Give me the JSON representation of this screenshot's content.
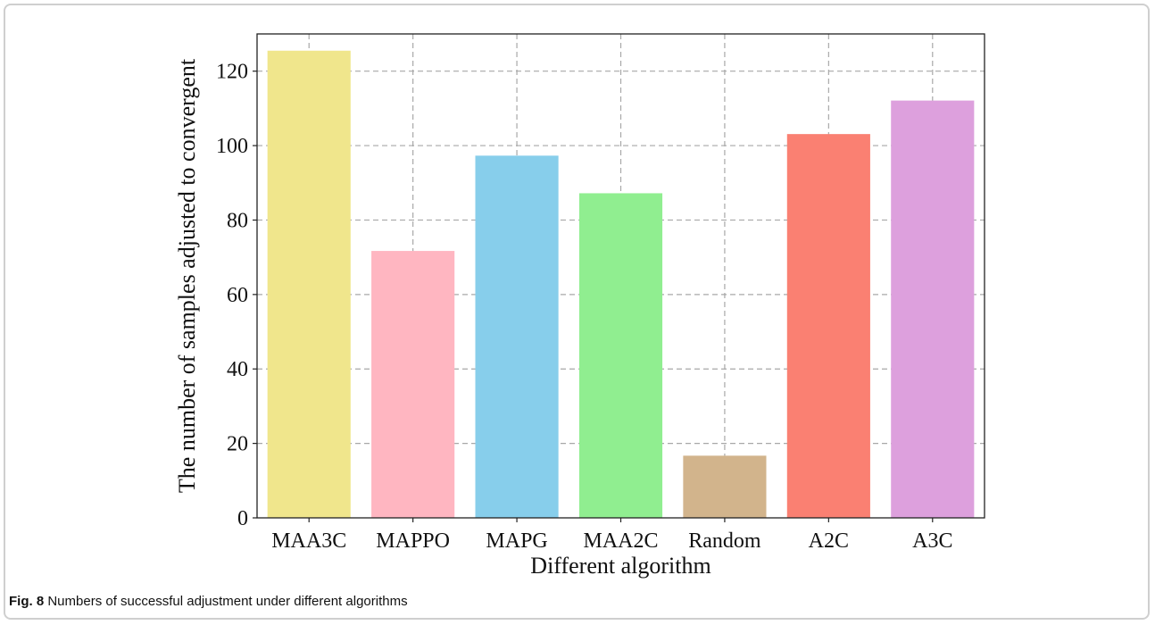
{
  "caption": {
    "label": "Fig. 8",
    "text": " Numbers of successful adjustment under different algorithms"
  },
  "chart_data": {
    "type": "bar",
    "title": "",
    "xlabel": "Different algorithm",
    "ylabel": "The number of samples adjusted to convergent",
    "categories": [
      "MAA3C",
      "MAPPO",
      "MAPG",
      "MAA2C",
      "Random",
      "A2C",
      "A3C"
    ],
    "values": [
      125.5,
      71.7,
      97.3,
      87.2,
      16.7,
      103.1,
      112.1
    ],
    "colors": [
      "#f0e68c",
      "#ffb6c1",
      "#87ceeb",
      "#90ee90",
      "#d2b48c",
      "#fa8072",
      "#dda0dd"
    ],
    "ylim": [
      0,
      130
    ],
    "yticks": [
      0,
      20,
      40,
      60,
      80,
      100,
      120
    ],
    "grid": true,
    "legend": "none"
  }
}
